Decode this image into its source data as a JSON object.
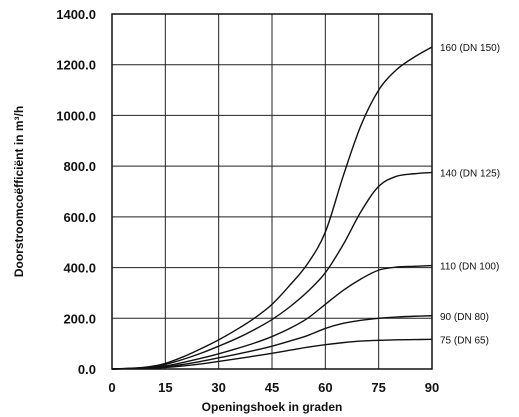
{
  "chart_data": {
    "type": "line",
    "title": "",
    "xlabel": "Openingshoek in graden",
    "ylabel": "Doorstroomcoëfficiënt in m³/h",
    "xlim": [
      0,
      90
    ],
    "ylim": [
      0,
      1400
    ],
    "x_ticks": [
      "0",
      "15",
      "30",
      "45",
      "60",
      "75",
      "90"
    ],
    "y_ticks": [
      "0.0",
      "200.0",
      "400.0",
      "600.0",
      "800.0",
      "1000.0",
      "1200.0",
      "1400.0"
    ],
    "grid": true,
    "legend": "labels at right end of each line",
    "x": [
      0,
      5,
      10,
      15,
      20,
      25,
      30,
      35,
      40,
      45,
      50,
      55,
      60,
      65,
      70,
      75,
      80,
      85,
      90
    ],
    "series": [
      {
        "name": "160 (DN 150)",
        "values": [
          0,
          3,
          8,
          22,
          48,
          80,
          115,
          155,
          200,
          255,
          330,
          415,
          540,
          760,
          960,
          1100,
          1180,
          1230,
          1270
        ]
      },
      {
        "name": "140 (DN 125)",
        "values": [
          0,
          2,
          6,
          18,
          38,
          62,
          90,
          120,
          155,
          195,
          245,
          305,
          380,
          490,
          620,
          720,
          760,
          770,
          775
        ]
      },
      {
        "name": "110 (DN 100)",
        "values": [
          0,
          2,
          5,
          12,
          26,
          42,
          60,
          80,
          102,
          128,
          160,
          200,
          255,
          310,
          355,
          390,
          402,
          405,
          408
        ]
      },
      {
        "name": "90 (DN 80)",
        "values": [
          0,
          1,
          3,
          8,
          18,
          30,
          44,
          58,
          73,
          90,
          110,
          132,
          160,
          180,
          192,
          200,
          205,
          208,
          210
        ]
      },
      {
        "name": "75 (DN 65)",
        "values": [
          0,
          1,
          2,
          6,
          12,
          20,
          30,
          40,
          51,
          62,
          74,
          86,
          96,
          104,
          110,
          113,
          115,
          116,
          117
        ]
      }
    ]
  }
}
